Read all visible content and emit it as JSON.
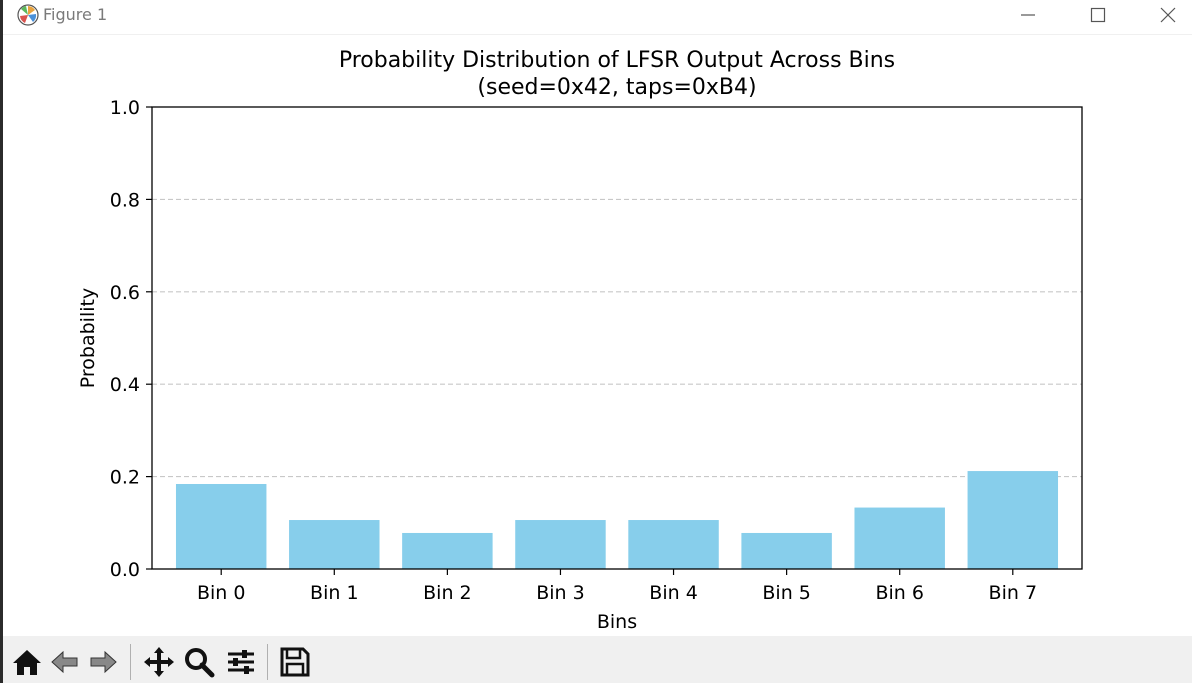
{
  "window": {
    "title": "Figure 1",
    "controls": [
      "minimize",
      "maximize",
      "close"
    ]
  },
  "toolbar": {
    "buttons": [
      {
        "name": "home-icon"
      },
      {
        "name": "back-arrow-icon"
      },
      {
        "name": "forward-arrow-icon"
      },
      {
        "name": "pan-icon"
      },
      {
        "name": "zoom-icon"
      },
      {
        "name": "configure-subplots-icon"
      },
      {
        "name": "save-icon"
      }
    ]
  },
  "colors": {
    "bar": "#87CEEB",
    "grid": "#c8c8c8",
    "axis": "#000000",
    "toolbar_bg": "#f0f0f0"
  },
  "chart_data": {
    "type": "bar",
    "title": "Probability Distribution of LFSR Output Across Bins",
    "subtitle": "(seed=0x42, taps=0xB4)",
    "xlabel": "Bins",
    "ylabel": "Probability",
    "categories": [
      "Bin 0",
      "Bin 1",
      "Bin 2",
      "Bin 3",
      "Bin 4",
      "Bin 5",
      "Bin 6",
      "Bin 7"
    ],
    "values": [
      0.184,
      0.106,
      0.078,
      0.106,
      0.106,
      0.078,
      0.133,
      0.212
    ],
    "ylim": [
      0.0,
      1.0
    ],
    "yticks": [
      0.0,
      0.2,
      0.4,
      0.6,
      0.8,
      1.0
    ],
    "ytick_labels": [
      "0.0",
      "0.2",
      "0.4",
      "0.6",
      "0.8",
      "1.0"
    ],
    "grid": "y-dashed"
  }
}
